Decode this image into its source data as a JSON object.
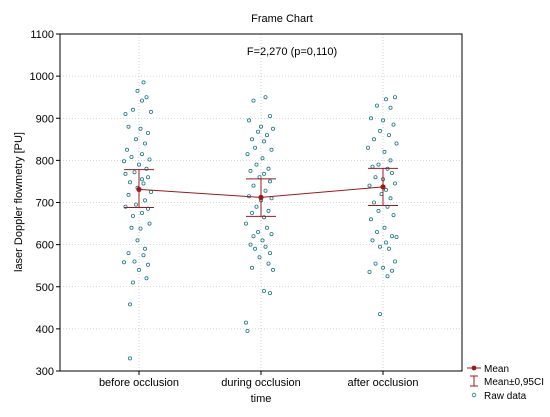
{
  "chart_data": {
    "type": "scatter",
    "title": "Frame Chart",
    "annotation": "F=2,270   (p=0,110)",
    "xlabel": "time",
    "ylabel": "laser Doppler flowmetry [PU]",
    "categories": [
      "before occlusion",
      "during occlusion",
      "after occlusion"
    ],
    "ylim": [
      300,
      1100
    ],
    "yticks": [
      "300",
      "400",
      "500",
      "600",
      "700",
      "800",
      "900",
      "1000",
      "1100"
    ],
    "grid": true,
    "legend": {
      "position": "bottom-right",
      "entries": [
        "Mean",
        "Mean±0,95CI",
        "Raw data"
      ]
    },
    "colors": {
      "mean": "#9b1b1b",
      "raw": "#1f7a8c",
      "grid": "#b0b0b0"
    },
    "mean": [
      731,
      712,
      737
    ],
    "ci_low": [
      688,
      667,
      693
    ],
    "ci_high": [
      778,
      756,
      781
    ],
    "raw_data": [
      {
        "category": "before occlusion",
        "points": [
          [
            -0.06,
            330
          ],
          [
            0.03,
            985
          ],
          [
            -0.09,
            910
          ],
          [
            -0.01,
            965
          ],
          [
            0.05,
            950
          ],
          [
            0.02,
            942
          ],
          [
            -0.04,
            920
          ],
          [
            0.08,
            915
          ],
          [
            -0.07,
            880
          ],
          [
            0.01,
            875
          ],
          [
            0.06,
            865
          ],
          [
            -0.02,
            850
          ],
          [
            0.04,
            840
          ],
          [
            -0.08,
            825
          ],
          [
            0.02,
            815
          ],
          [
            -0.05,
            808
          ],
          [
            0.07,
            802
          ],
          [
            -0.1,
            798
          ],
          [
            0.0,
            790
          ],
          [
            0.05,
            780
          ],
          [
            -0.03,
            772
          ],
          [
            -0.09,
            768
          ],
          [
            0.06,
            760
          ],
          [
            0.02,
            755
          ],
          [
            -0.06,
            748
          ],
          [
            0.03,
            745
          ],
          [
            -0.01,
            735
          ],
          [
            0.08,
            725
          ],
          [
            -0.07,
            718
          ],
          [
            0.04,
            705
          ],
          [
            -0.02,
            695
          ],
          [
            -0.09,
            690
          ],
          [
            0.06,
            685
          ],
          [
            0.02,
            675
          ],
          [
            -0.04,
            668
          ],
          [
            0.07,
            650
          ],
          [
            -0.05,
            640
          ],
          [
            0.01,
            638
          ],
          [
            -0.01,
            610
          ],
          [
            0.04,
            590
          ],
          [
            -0.07,
            580
          ],
          [
            0.03,
            575
          ],
          [
            -0.03,
            560
          ],
          [
            -0.1,
            558
          ],
          [
            0.06,
            552
          ],
          [
            0.0,
            540
          ],
          [
            0.05,
            520
          ],
          [
            -0.04,
            510
          ],
          [
            -0.06,
            458
          ]
        ]
      },
      {
        "category": "during occlusion",
        "points": [
          [
            0.03,
            950
          ],
          [
            -0.05,
            942
          ],
          [
            0.06,
            905
          ],
          [
            -0.08,
            895
          ],
          [
            0.0,
            880
          ],
          [
            0.08,
            875
          ],
          [
            -0.02,
            868
          ],
          [
            0.04,
            860
          ],
          [
            -0.06,
            850
          ],
          [
            0.02,
            845
          ],
          [
            -0.04,
            830
          ],
          [
            0.07,
            825
          ],
          [
            -0.09,
            815
          ],
          [
            0.01,
            805
          ],
          [
            -0.03,
            790
          ],
          [
            0.05,
            780
          ],
          [
            -0.07,
            775
          ],
          [
            0.02,
            768
          ],
          [
            -0.01,
            760
          ],
          [
            0.06,
            750
          ],
          [
            -0.05,
            740
          ],
          [
            0.03,
            728
          ],
          [
            -0.08,
            715
          ],
          [
            0.07,
            710
          ],
          [
            0.0,
            705
          ],
          [
            -0.03,
            690
          ],
          [
            0.05,
            680
          ],
          [
            -0.06,
            675
          ],
          [
            0.02,
            665
          ],
          [
            -0.1,
            650
          ],
          [
            0.04,
            640
          ],
          [
            -0.02,
            630
          ],
          [
            0.07,
            625
          ],
          [
            -0.05,
            620
          ],
          [
            0.01,
            610
          ],
          [
            -0.07,
            600
          ],
          [
            0.03,
            595
          ],
          [
            -0.04,
            590
          ],
          [
            0.06,
            580
          ],
          [
            -0.01,
            570
          ],
          [
            0.05,
            555
          ],
          [
            -0.06,
            545
          ],
          [
            0.08,
            540
          ],
          [
            0.02,
            490
          ],
          [
            0.06,
            485
          ],
          [
            -0.1,
            415
          ],
          [
            -0.09,
            395
          ]
        ]
      },
      {
        "category": "after occlusion",
        "points": [
          [
            0.02,
            945
          ],
          [
            0.08,
            950
          ],
          [
            -0.04,
            930
          ],
          [
            0.05,
            925
          ],
          [
            -0.08,
            900
          ],
          [
            0.0,
            895
          ],
          [
            0.07,
            885
          ],
          [
            -0.02,
            870
          ],
          [
            0.04,
            860
          ],
          [
            -0.06,
            850
          ],
          [
            0.09,
            840
          ],
          [
            -0.1,
            830
          ],
          [
            0.01,
            820
          ],
          [
            0.05,
            800
          ],
          [
            -0.03,
            790
          ],
          [
            -0.07,
            785
          ],
          [
            0.03,
            780
          ],
          [
            0.06,
            770
          ],
          [
            -0.05,
            760
          ],
          [
            0.0,
            755
          ],
          [
            0.08,
            745
          ],
          [
            -0.09,
            740
          ],
          [
            0.02,
            730
          ],
          [
            -0.01,
            720
          ],
          [
            0.05,
            710
          ],
          [
            -0.06,
            700
          ],
          [
            0.03,
            690
          ],
          [
            -0.03,
            680
          ],
          [
            0.07,
            670
          ],
          [
            -0.08,
            660
          ],
          [
            0.01,
            640
          ],
          [
            -0.04,
            630
          ],
          [
            0.06,
            620
          ],
          [
            0.09,
            618
          ],
          [
            -0.07,
            610
          ],
          [
            0.02,
            605
          ],
          [
            -0.02,
            595
          ],
          [
            0.04,
            590
          ],
          [
            0.08,
            560
          ],
          [
            -0.05,
            555
          ],
          [
            0.0,
            545
          ],
          [
            0.06,
            538
          ],
          [
            -0.09,
            535
          ],
          [
            0.03,
            525
          ],
          [
            -0.02,
            435
          ]
        ]
      }
    ]
  }
}
